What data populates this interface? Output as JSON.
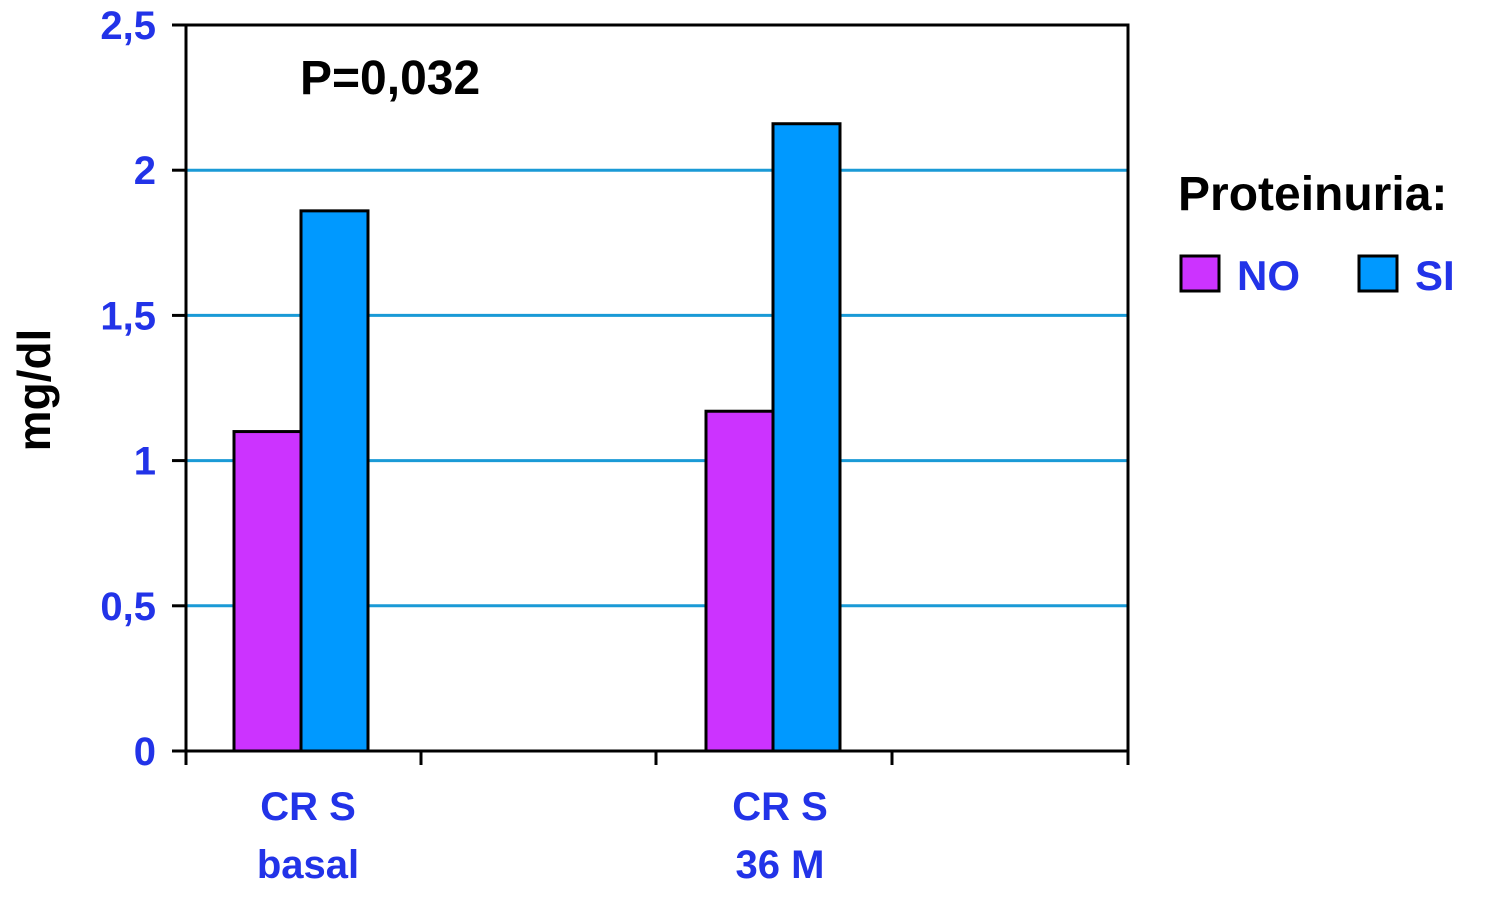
{
  "chart_data": {
    "type": "bar",
    "categories": [
      [
        "CR S",
        "basal"
      ],
      [
        "CR S",
        "36 M"
      ]
    ],
    "series": [
      {
        "name": "NO",
        "color": "#cc33ff",
        "values": [
          1.1,
          1.17
        ]
      },
      {
        "name": "SI",
        "color": "#0099ff",
        "values": [
          1.86,
          2.16
        ]
      }
    ],
    "ylabel": "mg/dl",
    "ylim": [
      0,
      2.5
    ],
    "yticks": [
      0,
      0.5,
      1,
      1.5,
      2,
      2.5
    ],
    "ytick_labels": [
      "0",
      "0,5",
      "1",
      "1,5",
      "2",
      "2,5"
    ],
    "annotation": "P=0,032",
    "legend_title": "Proteinuria:",
    "legend_position": "right",
    "grid": true,
    "grid_color": "#1a9ad6",
    "text_color": "#2233e8"
  }
}
